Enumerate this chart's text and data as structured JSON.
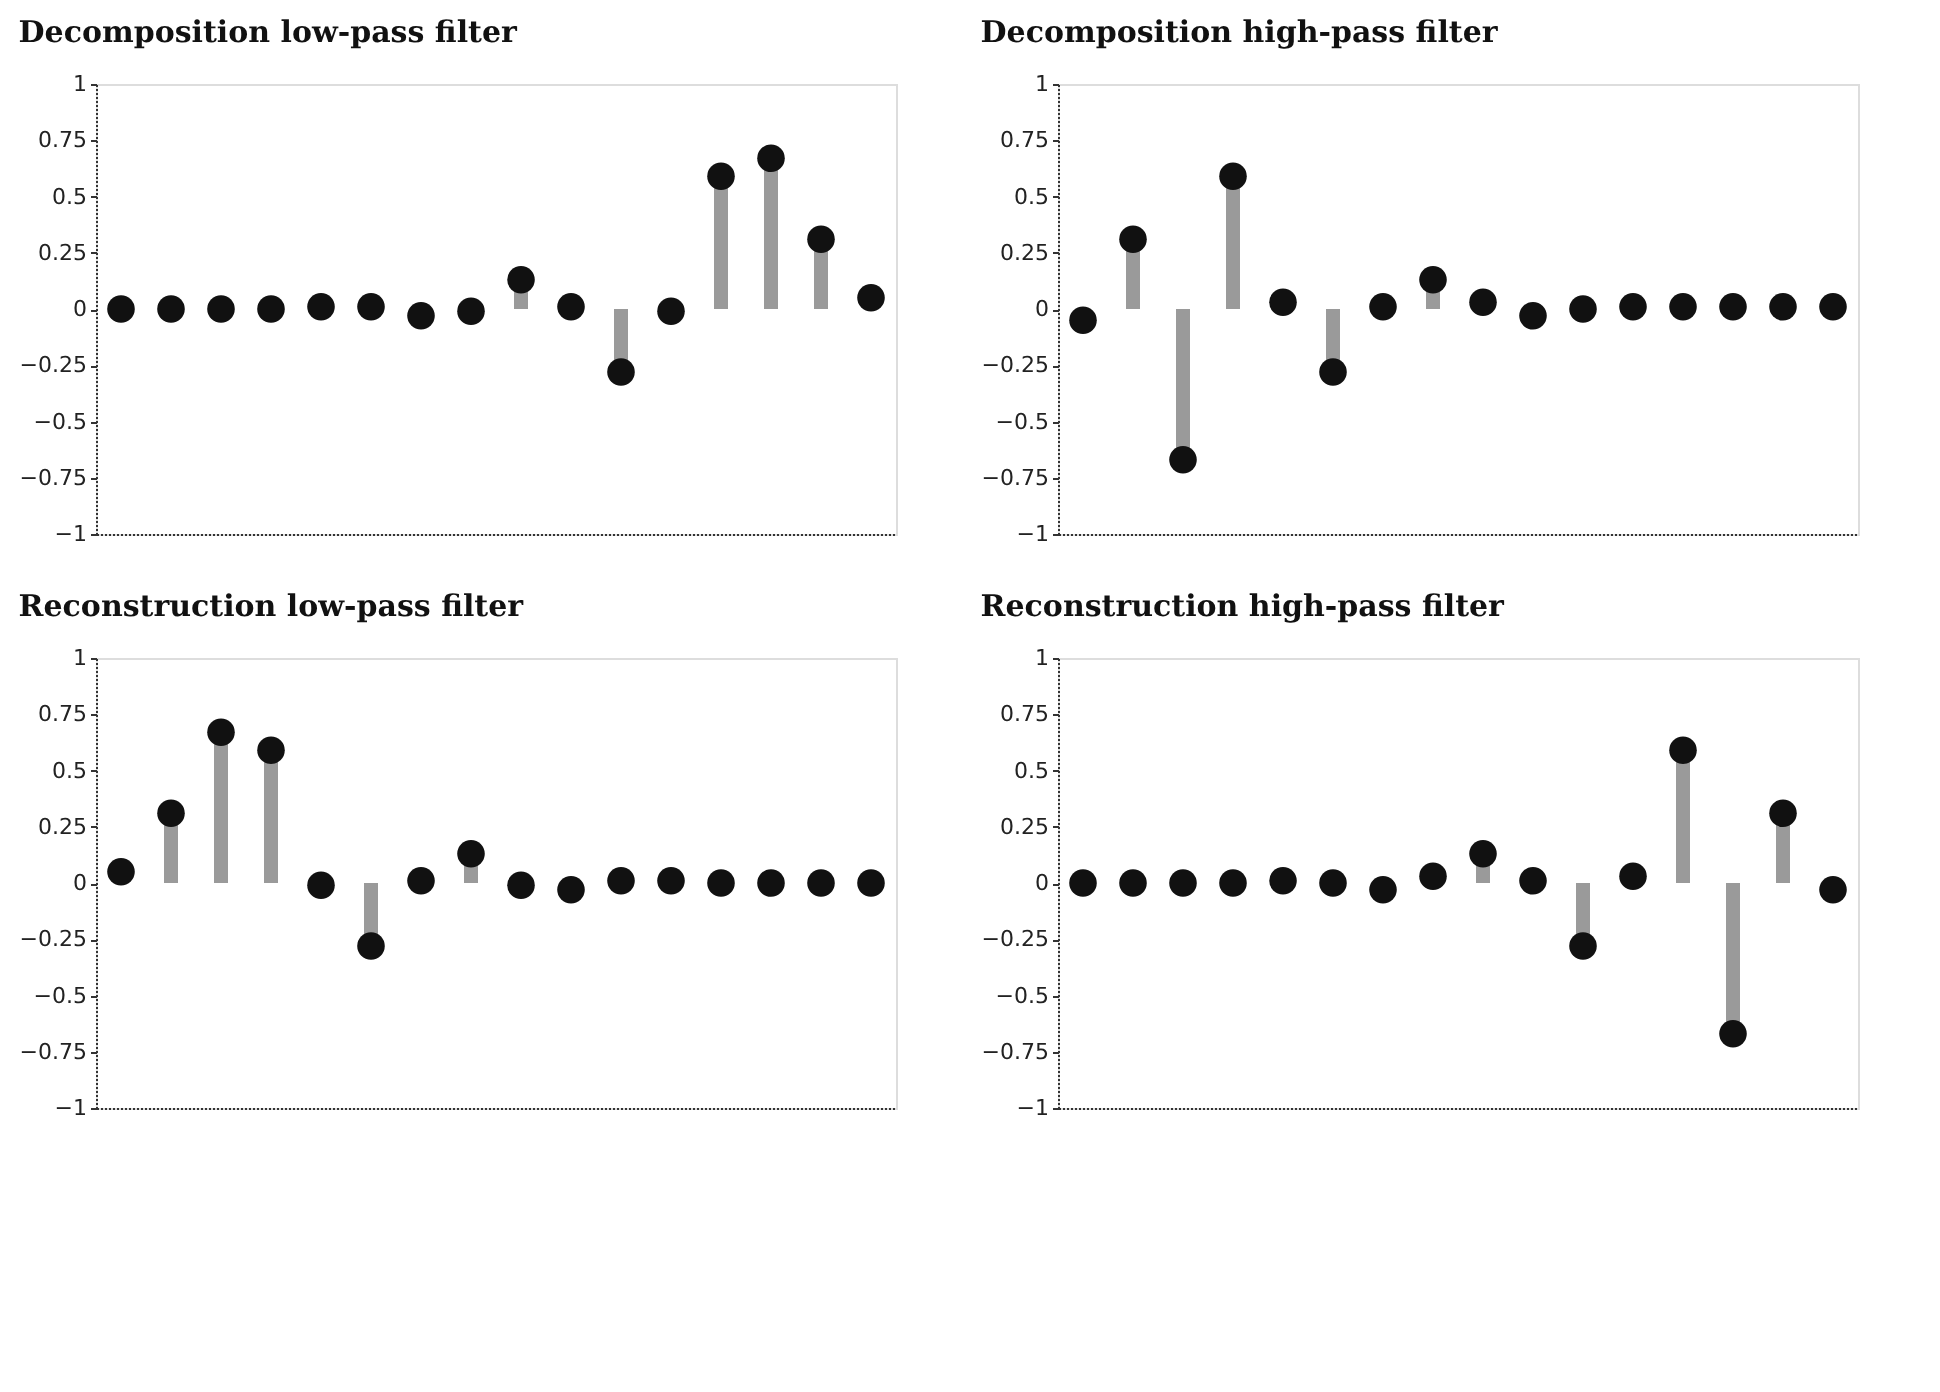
{
  "chart_data": [
    {
      "type": "lollipop",
      "title": "Decomposition low-pass filter",
      "categories": [
        null,
        null,
        null,
        null,
        null,
        null,
        null,
        null,
        null,
        null,
        null,
        null,
        null,
        null,
        null,
        null
      ],
      "series": [
        {
          "color": "#111111",
          "values": [
            0,
            0,
            0,
            0,
            0.01,
            0.01,
            -0.03,
            -0.01,
            0.13,
            0.01,
            -0.28,
            -0.01,
            0.59,
            0.67,
            0.31,
            0.05
          ]
        }
      ],
      "ylim": [
        -1,
        1
      ],
      "yticks": [
        -1,
        -0.75,
        -0.5,
        -0.25,
        0,
        0.25,
        0.5,
        0.75,
        1
      ],
      "tick_labels": "y",
      "grid": false
    },
    {
      "type": "lollipop",
      "title": "Decomposition high-pass filter",
      "categories": [
        null,
        null,
        null,
        null,
        null,
        null,
        null,
        null,
        null,
        null,
        null,
        null,
        null,
        null,
        null,
        null
      ],
      "series": [
        {
          "color": "#111111",
          "values": [
            -0.05,
            0.31,
            -0.67,
            0.59,
            0.03,
            -0.28,
            0.01,
            0.13,
            0.03,
            -0.03,
            0,
            0.01,
            0.01,
            0.01,
            0.01,
            0.01
          ]
        }
      ],
      "ylim": [
        -1,
        1
      ],
      "yticks": [
        -1,
        -0.75,
        -0.5,
        -0.25,
        0,
        0.25,
        0.5,
        0.75,
        1
      ],
      "tick_labels": "y",
      "grid": false
    },
    {
      "type": "lollipop",
      "title": "Reconstruction low-pass filter",
      "categories": [
        null,
        null,
        null,
        null,
        null,
        null,
        null,
        null,
        null,
        null,
        null,
        null,
        null,
        null,
        null,
        null
      ],
      "series": [
        {
          "color": "#111111",
          "values": [
            0.05,
            0.31,
            0.67,
            0.59,
            -0.01,
            -0.28,
            0.01,
            0.13,
            -0.01,
            -0.03,
            0.01,
            0.01,
            0,
            0,
            0,
            0
          ]
        }
      ],
      "ylim": [
        -1,
        1
      ],
      "yticks": [
        -1,
        -0.75,
        -0.5,
        -0.25,
        0,
        0.25,
        0.5,
        0.75,
        1
      ],
      "tick_labels": "y",
      "grid": false
    },
    {
      "type": "lollipop",
      "title": "Reconstruction high-pass filter",
      "categories": [
        null,
        null,
        null,
        null,
        null,
        null,
        null,
        null,
        null,
        null,
        null,
        null,
        null,
        null,
        null,
        null
      ],
      "series": [
        {
          "color": "#111111",
          "values": [
            0,
            0,
            0,
            0,
            0.01,
            0,
            -0.03,
            0.03,
            0.13,
            0.01,
            -0.28,
            0.03,
            0.59,
            -0.67,
            0.31,
            -0.03
          ]
        }
      ],
      "ylim": [
        -1,
        1
      ],
      "yticks": [
        -1,
        -0.75,
        -0.5,
        -0.25,
        0,
        0.25,
        0.5,
        0.75,
        1
      ],
      "tick_labels": "y",
      "grid": false
    }
  ]
}
